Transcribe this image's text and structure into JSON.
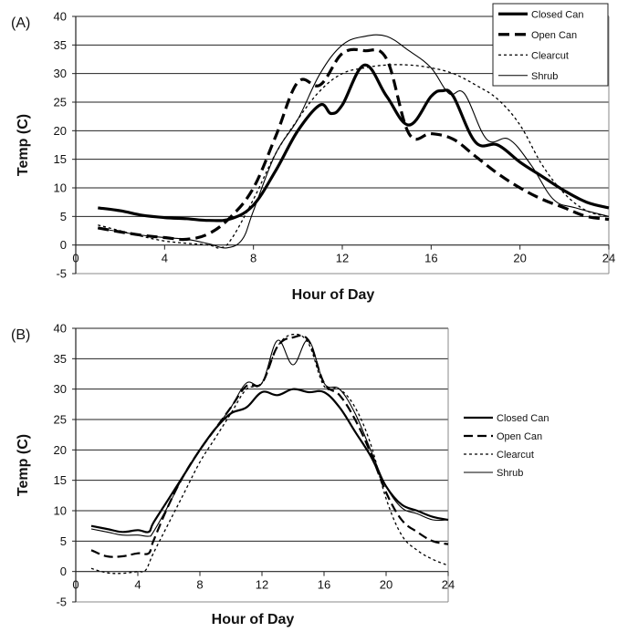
{
  "chart_data": [
    {
      "type": "line",
      "panel_label": "(A)",
      "xlabel": "Hour of Day",
      "ylabel": "Temp (C)",
      "xlim": [
        0,
        24
      ],
      "ylim": [
        -5,
        40
      ],
      "xticks": [
        0,
        4,
        8,
        12,
        16,
        20,
        24
      ],
      "yticks": [
        -5,
        0,
        5,
        10,
        15,
        20,
        25,
        30,
        35,
        40
      ],
      "grid": "horizontal",
      "legend_position": "top-right",
      "series": [
        {
          "name": "Closed Can",
          "style": "solid-thick",
          "x": [
            1,
            2,
            3,
            4,
            5,
            6,
            7,
            8,
            9,
            10,
            11,
            11.5,
            12,
            13,
            14,
            15,
            16,
            16.5,
            17,
            18,
            19,
            20,
            21,
            22,
            23,
            24
          ],
          "y": [
            6.5,
            6,
            5.2,
            4.8,
            4.6,
            4.3,
            4.6,
            7,
            13,
            20,
            24.5,
            23,
            24.5,
            31.5,
            26,
            21,
            26,
            27,
            26,
            18,
            17.5,
            14.5,
            12,
            9.5,
            7.5,
            6.5
          ]
        },
        {
          "name": "Open Can",
          "style": "dashed-thick",
          "x": [
            1,
            2,
            3,
            4,
            5,
            6,
            7,
            8,
            9,
            10,
            11,
            12,
            13,
            14,
            15,
            16,
            17,
            18,
            19,
            20,
            21,
            22,
            23,
            24
          ],
          "y": [
            3,
            2.3,
            1.7,
            1.3,
            1,
            2,
            5,
            10,
            19,
            28.5,
            28,
            33.5,
            34,
            32.5,
            19.5,
            19.5,
            18.5,
            15.5,
            12.5,
            10,
            8,
            6.5,
            5,
            4.5
          ]
        },
        {
          "name": "Clearcut",
          "style": "dotted",
          "x": [
            1,
            2,
            3,
            4,
            5,
            6,
            6.5,
            7,
            8,
            9,
            10,
            11,
            12,
            13,
            14,
            15,
            16,
            17,
            18,
            19,
            20,
            21,
            22,
            23,
            24
          ],
          "y": [
            3.5,
            2.5,
            1.5,
            0.7,
            0.3,
            0,
            -0.5,
            1,
            8,
            16,
            22,
            27,
            30,
            31,
            31.5,
            31.5,
            31,
            30,
            28,
            25.5,
            21,
            14,
            9,
            6,
            5
          ]
        },
        {
          "name": "Shrub",
          "style": "solid-thin",
          "x": [
            1,
            2,
            3,
            4,
            5,
            6,
            6.8,
            7.5,
            8,
            9,
            10,
            11,
            12,
            13,
            14,
            15,
            16,
            16.8,
            17.5,
            18.5,
            19.5,
            20.5,
            21.5,
            22.5,
            24
          ],
          "y": [
            3,
            2.3,
            1.7,
            1.3,
            1,
            0.2,
            -0.5,
            1,
            6,
            16,
            22,
            30,
            35,
            36.5,
            36.5,
            34,
            31,
            26.5,
            26.5,
            18.5,
            18.5,
            14,
            8,
            6.5,
            5
          ]
        }
      ]
    },
    {
      "type": "line",
      "panel_label": "(B)",
      "xlabel": "Hour of Day",
      "ylabel": "Temp (C)",
      "xlim": [
        0,
        24
      ],
      "ylim": [
        -5,
        40
      ],
      "xticks": [
        0,
        4,
        8,
        12,
        16,
        20,
        24
      ],
      "yticks": [
        -5,
        0,
        5,
        10,
        15,
        20,
        25,
        30,
        35,
        40
      ],
      "grid": "horizontal",
      "legend_position": "right",
      "series": [
        {
          "name": "Closed Can",
          "style": "solid-medium",
          "x": [
            1,
            2,
            3,
            4,
            4.7,
            5,
            6,
            7,
            8,
            9,
            10,
            11,
            12,
            13,
            14,
            15,
            16,
            17,
            18,
            19,
            20,
            21,
            22,
            23,
            24
          ],
          "y": [
            7.5,
            7,
            6.5,
            6.8,
            6.5,
            8,
            12,
            16,
            20,
            23.5,
            26,
            27,
            29.5,
            29,
            30,
            29.5,
            29.5,
            27,
            23,
            19,
            14,
            11,
            10,
            9,
            8.5
          ]
        },
        {
          "name": "Open Can",
          "style": "dashed-medium",
          "x": [
            1,
            2,
            3,
            4,
            4.7,
            5,
            6,
            7,
            8,
            9,
            10,
            11,
            12,
            13,
            14,
            15,
            16,
            17,
            18,
            19,
            20,
            21,
            22,
            23,
            24
          ],
          "y": [
            3.5,
            2.5,
            2.5,
            3,
            3,
            5,
            11,
            16,
            20,
            23.5,
            27,
            30.5,
            31,
            37,
            38.5,
            38,
            31,
            29,
            25,
            19.5,
            13,
            8.5,
            6.5,
            5,
            4.5
          ]
        },
        {
          "name": "Clearcut",
          "style": "dotted",
          "x": [
            1,
            2,
            3,
            4,
            4.5,
            5,
            6,
            7,
            8,
            9,
            10,
            11,
            12,
            13,
            14,
            15,
            16,
            17,
            18,
            19,
            20,
            21,
            22,
            23,
            24
          ],
          "y": [
            0.5,
            -0.2,
            -0.3,
            0,
            0.2,
            3,
            8,
            13,
            18,
            22,
            26,
            30,
            31,
            37,
            39,
            37.5,
            30.5,
            30,
            27,
            21,
            12,
            6,
            3.5,
            2,
            1
          ]
        },
        {
          "name": "Shrub",
          "style": "solid-thin",
          "x": [
            1,
            2,
            3,
            4,
            4.7,
            5,
            6,
            7,
            8,
            9,
            10,
            11,
            12,
            13,
            14,
            15,
            16,
            17,
            18,
            19,
            20,
            21,
            22,
            23,
            24
          ],
          "y": [
            7,
            6.5,
            6,
            6,
            5.8,
            6.5,
            11,
            16,
            20,
            23.5,
            27,
            31,
            31,
            38,
            34,
            38,
            31,
            30,
            26,
            20,
            14,
            10.5,
            9.5,
            8.5,
            8.5
          ]
        }
      ]
    }
  ]
}
